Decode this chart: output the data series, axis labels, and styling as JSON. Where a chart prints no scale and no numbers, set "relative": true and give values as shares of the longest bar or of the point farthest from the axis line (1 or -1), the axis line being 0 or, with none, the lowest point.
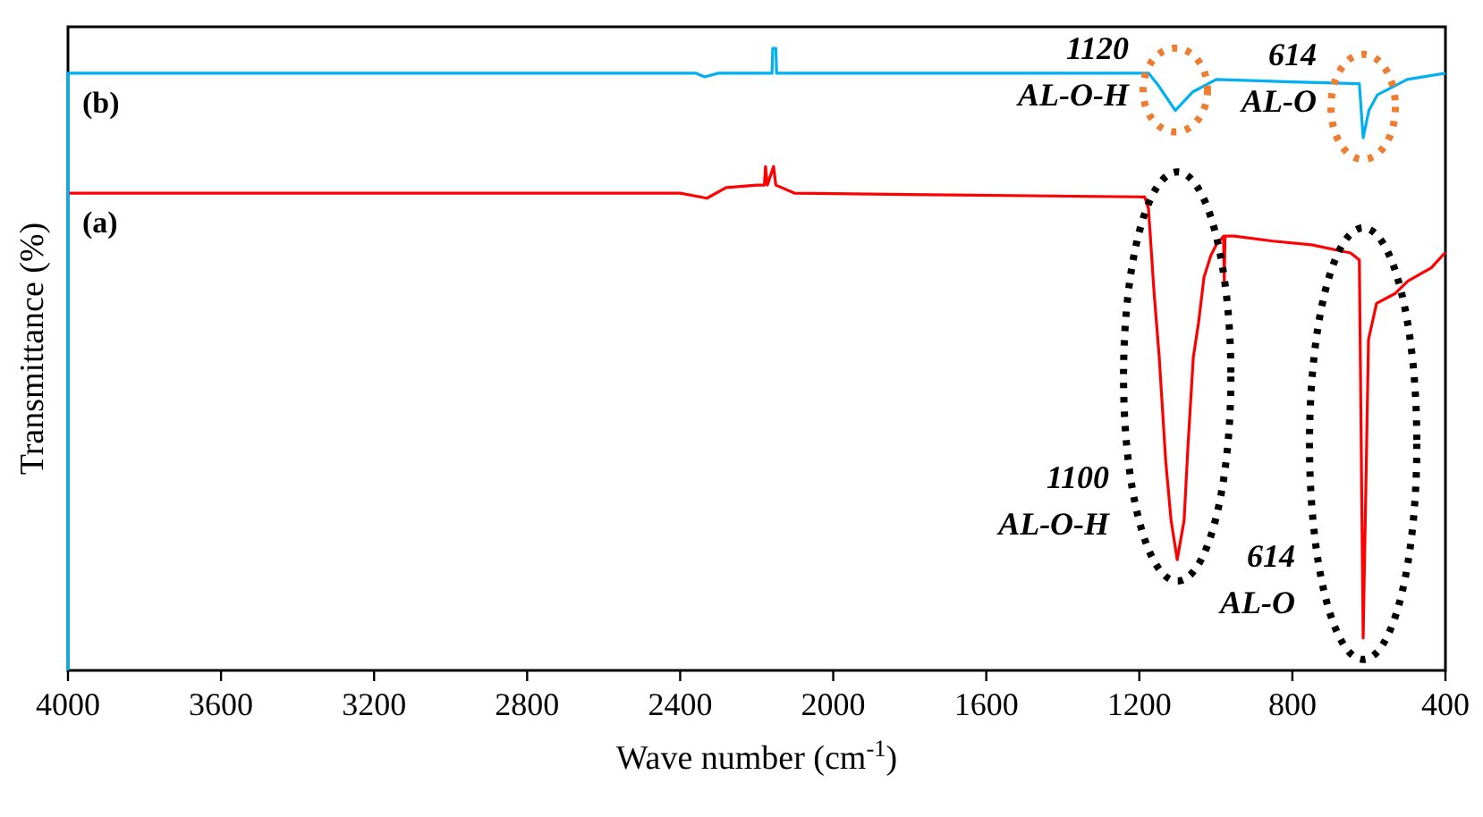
{
  "chart_data": {
    "type": "line",
    "relative": true,
    "xlabel": "Wave number (cm$^{-1}$)",
    "ylabel": "Transmittance (%)",
    "xlim": [
      4000,
      400
    ],
    "xticks": [
      4000,
      3600,
      3200,
      2800,
      2400,
      2000,
      1600,
      1200,
      800,
      400
    ],
    "grid": false,
    "legend": false,
    "marker": "none",
    "line_style": "solid",
    "x": [
      4000,
      2400,
      2330,
      2280,
      2200,
      2180,
      2177,
      2172,
      2156,
      2150,
      2100,
      1186,
      1176,
      1162,
      1148,
      1140,
      1131,
      1117,
      1101,
      1083,
      1073,
      1059,
      1045,
      1031,
      1013,
      999,
      980,
      978,
      976,
      952,
      850,
      750,
      648,
      625,
      615,
      601,
      580,
      531,
      498,
      437,
      400
    ],
    "series": [
      {
        "name": "(a)",
        "color": "#ff0000",
        "values": [
          0.767,
          0.767,
          0.759,
          0.776,
          0.78,
          0.78,
          0.81,
          0.78,
          0.81,
          0.78,
          0.767,
          0.761,
          0.742,
          0.612,
          0.503,
          0.425,
          0.336,
          0.241,
          0.178,
          0.241,
          0.359,
          0.503,
          0.56,
          0.632,
          0.667,
          0.684,
          0.698,
          0.626,
          0.698,
          0.698,
          0.69,
          0.684,
          0.671,
          0.66,
          0.052,
          0.532,
          0.59,
          0.606,
          0.626,
          0.647,
          0.672
        ]
      },
      {
        "name": "(b)",
        "color": "#00b0f0",
        "x": [
          4000,
          4000,
          2360,
          2336,
          2300,
          2160,
          2158,
          2150,
          2148,
          1176,
          1150,
          1106,
          1060,
          999,
          800,
          625,
          615,
          600,
          578,
          500,
          450,
          400
        ],
        "values": [
          0,
          0.96,
          0.96,
          0.954,
          0.96,
          0.96,
          1,
          1,
          0.96,
          0.96,
          0.94,
          0.9,
          0.93,
          0.95,
          0.946,
          0.943,
          0.856,
          0.9,
          0.925,
          0.95,
          0.955,
          0.96
        ]
      }
    ],
    "annotations": [
      {
        "text": "1120\nAL-O-H",
        "x": 1106,
        "y": 0.9
      },
      {
        "text": "614\nAL-O",
        "x": 615,
        "y": 0.856
      },
      {
        "text": "1100\nAL-O-H",
        "x": 1101,
        "y": 0.178
      },
      {
        "text": "614\nAL-O",
        "x": 615,
        "y": 0.052
      }
    ]
  }
}
